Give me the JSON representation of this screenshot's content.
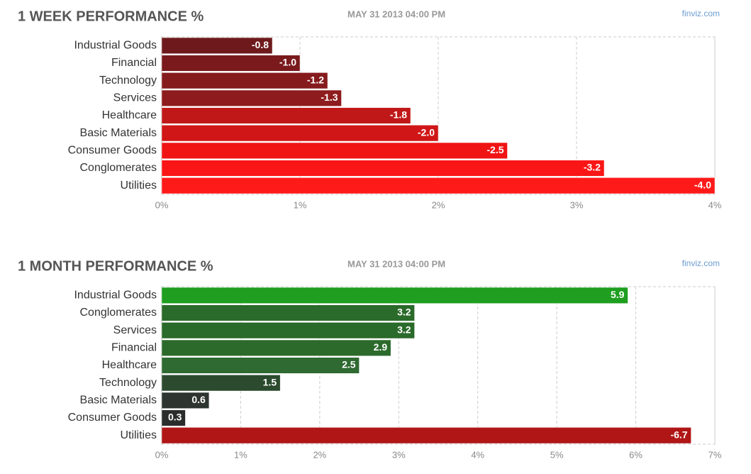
{
  "chart_data": [
    {
      "type": "bar",
      "title": "1 WEEK PERFORMANCE %",
      "subtitle": "MAY 31 2013 04:00 PM",
      "source": "finviz.com",
      "categories": [
        "Industrial Goods",
        "Financial",
        "Technology",
        "Services",
        "Healthcare",
        "Basic Materials",
        "Consumer Goods",
        "Conglomerates",
        "Utilities"
      ],
      "values": [
        -0.8,
        -1.0,
        -1.2,
        -1.3,
        -1.8,
        -2.0,
        -2.5,
        -3.2,
        -4.0
      ],
      "value_labels": [
        "-0.8",
        "-1.0",
        "-1.2",
        "-1.3",
        "-1.8",
        "-2.0",
        "-2.5",
        "-3.2",
        "-4.0"
      ],
      "colors": [
        "#6e1a1c",
        "#7a1a1c",
        "#861b1d",
        "#8e1c1e",
        "#c01818",
        "#d01616",
        "#f01414",
        "#fa1616",
        "#ff1a1a"
      ],
      "xlim": [
        0,
        4
      ],
      "xticks": [
        {
          "value": 0,
          "label": "0%"
        },
        {
          "value": 1,
          "label": "1%"
        },
        {
          "value": 2,
          "label": "2%"
        },
        {
          "value": 3,
          "label": "3%"
        },
        {
          "value": 4,
          "label": "4%"
        }
      ],
      "grid": true
    },
    {
      "type": "bar",
      "title": "1 MONTH PERFORMANCE %",
      "subtitle": "MAY 31 2013 04:00 PM",
      "source": "finviz.com",
      "categories": [
        "Industrial Goods",
        "Conglomerates",
        "Services",
        "Financial",
        "Healthcare",
        "Technology",
        "Basic Materials",
        "Consumer Goods",
        "Utilities"
      ],
      "values": [
        5.9,
        3.2,
        3.2,
        2.9,
        2.5,
        1.5,
        0.6,
        0.3,
        -6.7
      ],
      "value_labels": [
        "5.9",
        "3.2",
        "3.2",
        "2.9",
        "2.5",
        "1.5",
        "0.6",
        "0.3",
        "-6.7"
      ],
      "colors": [
        "#1f9e1f",
        "#2a6a2a",
        "#2a6a2a",
        "#2c6a2c",
        "#2f6a32",
        "#2c4a2e",
        "#2e3530",
        "#2a2d2b",
        "#b01616"
      ],
      "xlim": [
        0,
        7
      ],
      "xticks": [
        {
          "value": 0,
          "label": "0%"
        },
        {
          "value": 1,
          "label": "1%"
        },
        {
          "value": 2,
          "label": "2%"
        },
        {
          "value": 3,
          "label": "3%"
        },
        {
          "value": 4,
          "label": "4%"
        },
        {
          "value": 5,
          "label": "5%"
        },
        {
          "value": 6,
          "label": "6%"
        },
        {
          "value": 7,
          "label": "7%"
        }
      ],
      "grid": true
    }
  ]
}
